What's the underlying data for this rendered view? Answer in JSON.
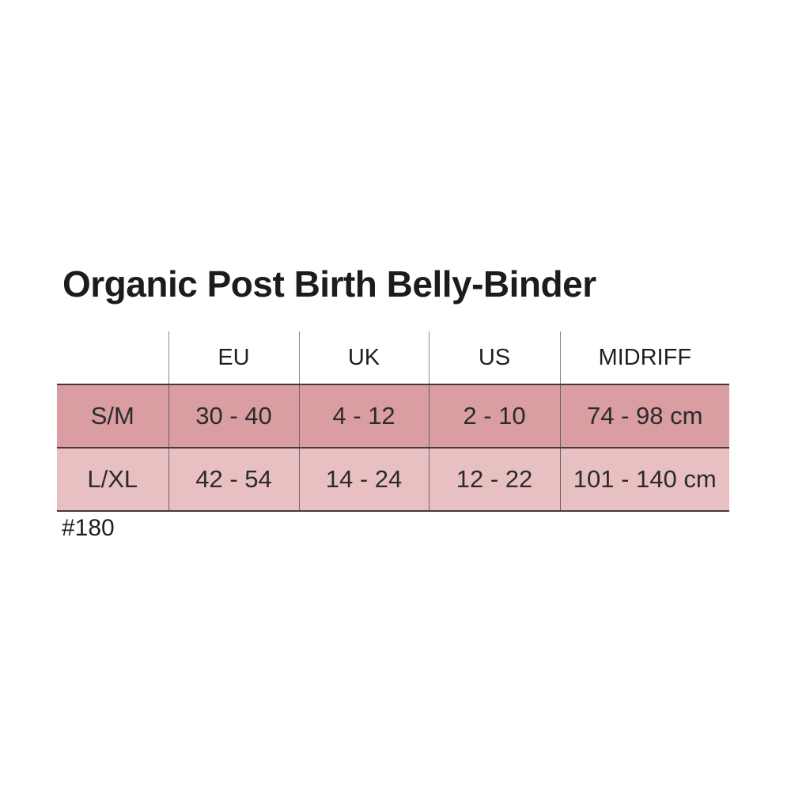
{
  "title": "Organic Post Birth Belly-Binder",
  "product_code": "#180",
  "table": {
    "columns": [
      "",
      "EU",
      "UK",
      "US",
      "MIDRIFF"
    ],
    "rows": [
      {
        "label": "S/M",
        "values": [
          "30 - 40",
          "4 - 12",
          "2 - 10",
          "74 - 98 cm"
        ],
        "bg": "#d99da2"
      },
      {
        "label": "L/XL",
        "values": [
          "42 - 54",
          "14 - 24",
          "12 - 22",
          "101 - 140 cm"
        ],
        "bg": "#e9c0c2"
      }
    ]
  },
  "colors": {
    "background": "#ffffff",
    "row_dark": "#d99da2",
    "row_light": "#e9c0c2",
    "horizontal_border": "#44393c",
    "vertical_divider_header": "#8f888b",
    "vertical_divider_body": "#6e6366",
    "text": "#2b2b2b"
  }
}
